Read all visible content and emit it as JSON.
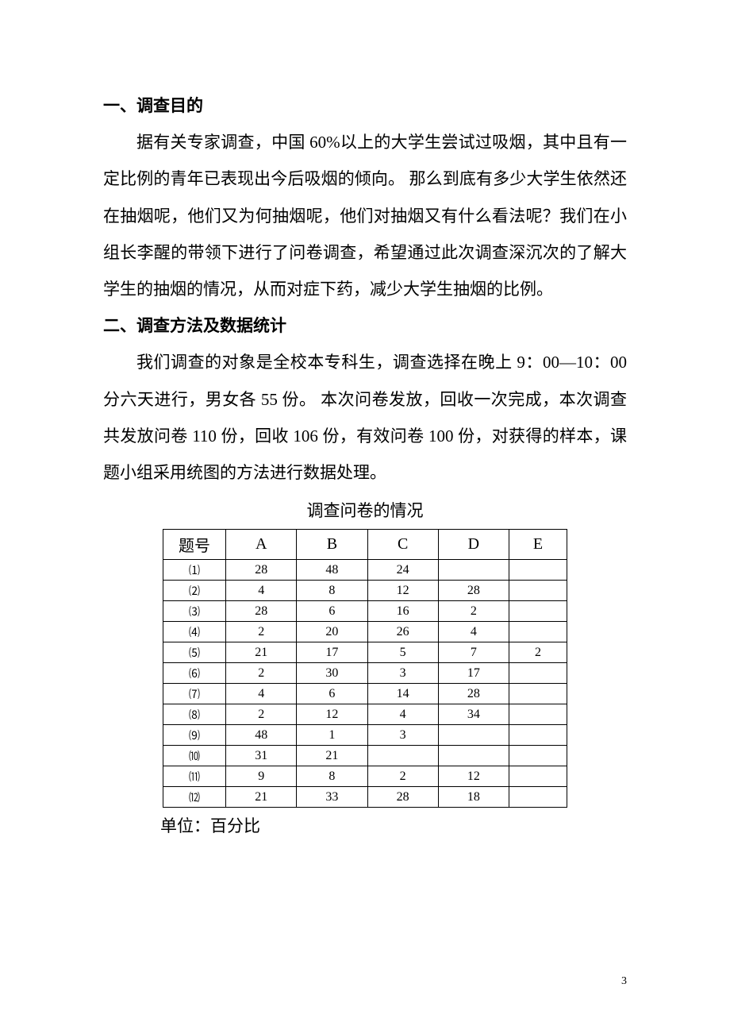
{
  "section1": {
    "heading": "一、调查目的",
    "paragraph": "据有关专家调查，中国 60%以上的大学生尝试过吸烟，其中且有一定比例的青年已表现出今后吸烟的倾向。 那么到底有多少大学生依然还在抽烟呢，他们又为何抽烟呢，他们对抽烟又有什么看法呢？我们在小组长李醒的带领下进行了问卷调查，希望通过此次调查深沉次的了解大学生的抽烟的情况，从而对症下药，减少大学生抽烟的比例。"
  },
  "section2": {
    "heading": "二、调查方法及数据统计",
    "paragraph": "我们调查的对象是全校本专科生，调查选择在晚上 9：00—10：00 分六天进行，男女各 55 份。 本次问卷发放，回收一次完成，本次调查共发放问卷 110 份，回收 106 份，有效问卷 100 份，对获得的样本，课题小组采用统图的方法进行数据处理。"
  },
  "table": {
    "title": "调查问卷的情况",
    "columns": [
      "题号",
      "A",
      "B",
      "C",
      "D",
      "E"
    ],
    "rows": [
      [
        "⑴",
        "28",
        "48",
        "24",
        "",
        ""
      ],
      [
        "⑵",
        "4",
        "8",
        "12",
        "28",
        ""
      ],
      [
        "⑶",
        "28",
        "6",
        "16",
        "2",
        ""
      ],
      [
        "⑷",
        "2",
        "20",
        "26",
        "4",
        ""
      ],
      [
        "⑸",
        "21",
        "17",
        "5",
        "7",
        "2"
      ],
      [
        "⑹",
        "2",
        "30",
        "3",
        "17",
        ""
      ],
      [
        "⑺",
        "4",
        "6",
        "14",
        "28",
        ""
      ],
      [
        "⑻",
        "2",
        "12",
        "4",
        "34",
        ""
      ],
      [
        "⑼",
        "48",
        "1",
        "3",
        "",
        ""
      ],
      [
        "⑽",
        "31",
        "21",
        "",
        "",
        ""
      ],
      [
        "⑾",
        "9",
        "8",
        "2",
        "12",
        ""
      ],
      [
        "⑿",
        "21",
        "33",
        "28",
        "18",
        ""
      ]
    ],
    "unit_label": "单位：百分比"
  },
  "page_number": "3"
}
